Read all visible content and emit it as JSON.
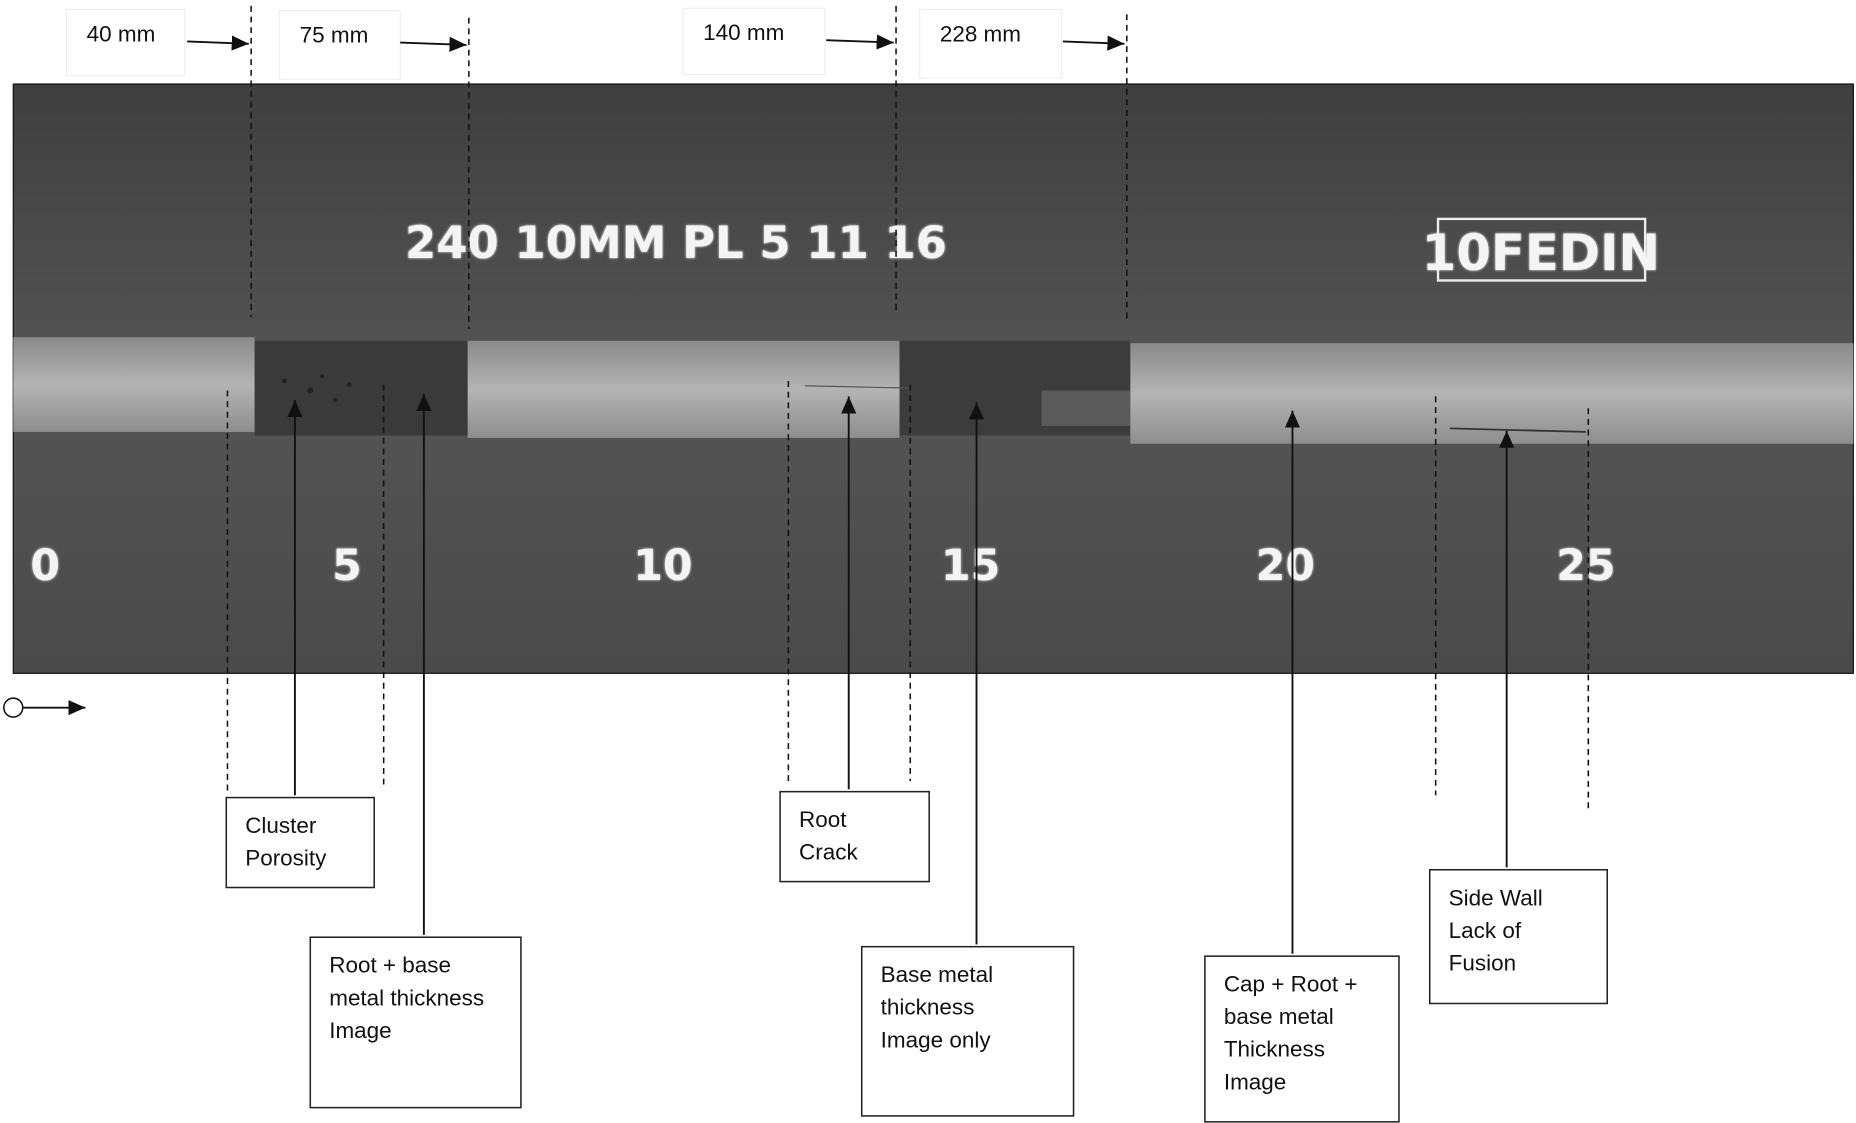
{
  "dimensions": [
    {
      "label": "40 mm"
    },
    {
      "label": "75 mm"
    },
    {
      "label": "140 mm"
    },
    {
      "label": "228 mm"
    }
  ],
  "film": {
    "marking": "240 10MM PL 5 11 16",
    "id": "10FEDIN",
    "scale": [
      "0",
      "5",
      "10",
      "15",
      "20",
      "25"
    ]
  },
  "annotations": [
    {
      "lines": [
        "Cluster",
        "Porosity"
      ]
    },
    {
      "lines": [
        "Root + base",
        "metal thickness",
        "Image"
      ]
    },
    {
      "lines": [
        "Root",
        "Crack"
      ]
    },
    {
      "lines": [
        "Base metal",
        "thickness",
        "Image only"
      ]
    },
    {
      "lines": [
        "Cap + Root +",
        "base metal",
        "Thickness",
        "Image"
      ]
    },
    {
      "lines": [
        "Side Wall",
        "Lack of",
        "Fusion"
      ]
    }
  ]
}
